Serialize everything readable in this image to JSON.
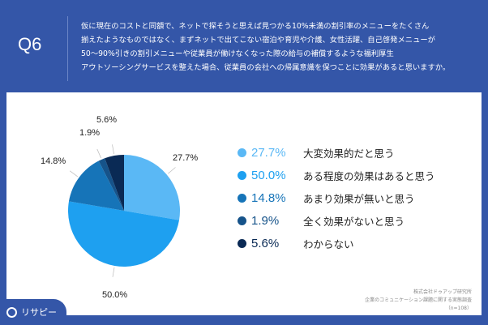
{
  "header": {
    "question_number": "Q6",
    "question_lines": [
      "仮に現在のコストと同額で、ネットで探そうと思えば見つかる10%未満の割引率のメニューをたくさん",
      "揃えたようなものではなく、まずネットで出てこない宿泊や育児や介護、女性活躍、自己啓発メニューが",
      "50〜90%引きの割引メニューや従業員が働けなくなった際の給与の補償するような福利厚生",
      "アウトソーシングサービスを整えた場合、従業員の会社への帰属意識を保つことに効果があると思いますか。"
    ]
  },
  "legend": [
    {
      "pct": "27.7%",
      "label": "大変効果的だと思う",
      "color": "#5ab8f5"
    },
    {
      "pct": "50.0%",
      "label": "ある程度の効果はあると思う",
      "color": "#1ea0f0"
    },
    {
      "pct": "14.8%",
      "label": "あまり効果が無いと思う",
      "color": "#1674b8"
    },
    {
      "pct": "1.9%",
      "label": "全く効果がないと思う",
      "color": "#16538a"
    },
    {
      "pct": "5.6%",
      "label": "わからない",
      "color": "#0a2a55"
    }
  ],
  "pie_labels": {
    "a": "27.7%",
    "b": "50.0%",
    "c": "14.8%",
    "d": "1.9%",
    "e": "5.6%"
  },
  "source": {
    "line1": "株式会社ドゥアップ研究所",
    "line2": "企業のコミュニケーション課題に関する実態調査",
    "line3": "（n=108）"
  },
  "logo": {
    "text": "リサピー"
  },
  "chart_data": {
    "type": "pie",
    "title": "Q6",
    "categories": [
      "大変効果的だと思う",
      "ある程度の効果はあると思う",
      "あまり効果が無いと思う",
      "全く効果がないと思う",
      "わからない"
    ],
    "values": [
      27.7,
      50.0,
      14.8,
      1.9,
      5.6
    ],
    "colors": [
      "#5ab8f5",
      "#1ea0f0",
      "#1674b8",
      "#16538a",
      "#0a2a55"
    ],
    "start_angle": "12 o'clock, clockwise",
    "legend_position": "right",
    "n": 108
  }
}
